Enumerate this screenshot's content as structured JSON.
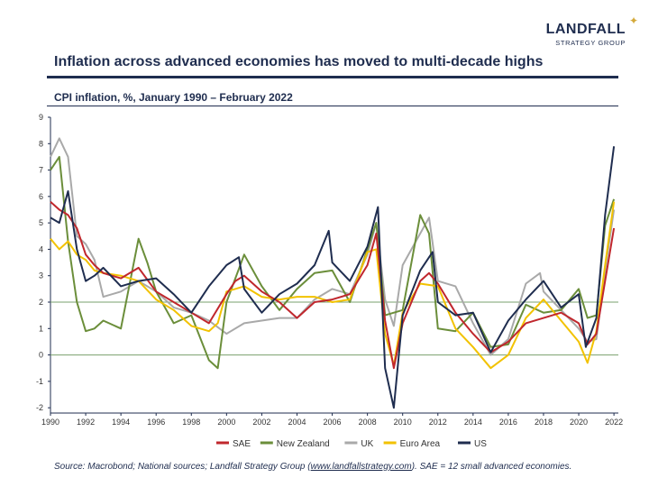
{
  "brand": {
    "name": "LANDFALL",
    "sub": "STRATEGY GROUP"
  },
  "headline": "Inflation across advanced economies has moved to multi-decade highs",
  "colors": {
    "SAE": "#c0272d",
    "New Zealand": "#6b8e3a",
    "UK": "#a9a9a9",
    "Euro Area": "#f2c200",
    "US": "#1f2d4f",
    "ref": "#7aa06d",
    "axis": "#1f2d4f"
  },
  "source": {
    "prefix": "Source: Macrobond; National sources; Landfall Strategy Group (",
    "link": "www.landfallstrategy.com",
    "suffix": "). SAE = 12 small advanced economies."
  },
  "chart_data": {
    "type": "line",
    "title": "CPI inflation, %, January 1990 – February 2022",
    "xlabel": "",
    "ylabel": "",
    "xlim": [
      1990,
      2022.25
    ],
    "ylim": [
      -2.2,
      9
    ],
    "yticks": [
      -2,
      -1,
      0,
      1,
      2,
      3,
      4,
      5,
      6,
      7,
      8,
      9
    ],
    "xticks": [
      1990,
      1992,
      1994,
      1996,
      1998,
      2000,
      2002,
      2004,
      2006,
      2008,
      2010,
      2012,
      2014,
      2016,
      2018,
      2020,
      2022
    ],
    "reference_lines": [
      0,
      2
    ],
    "legend_position": "bottom",
    "series": [
      {
        "name": "SAE",
        "x": [
          1990,
          1990.5,
          1991,
          1991.5,
          1992,
          1992.5,
          1993,
          1994,
          1995,
          1996,
          1997,
          1998,
          1999,
          2000,
          2000.5,
          2001,
          2002,
          2003,
          2004,
          2005,
          2006,
          2007,
          2008,
          2008.5,
          2009,
          2009.5,
          2010,
          2011,
          2011.5,
          2012,
          2013,
          2014,
          2015,
          2016,
          2017,
          2018,
          2019,
          2020,
          2020.5,
          2021,
          2021.5,
          2022
        ],
        "y": [
          5.8,
          5.5,
          5.3,
          4.8,
          3.8,
          3.4,
          3.1,
          2.9,
          3.3,
          2.4,
          2.0,
          1.6,
          1.2,
          2.3,
          2.8,
          3.0,
          2.4,
          2.0,
          1.4,
          2.0,
          2.1,
          2.3,
          3.4,
          4.6,
          1.3,
          -0.5,
          1.2,
          2.8,
          3.1,
          2.7,
          1.6,
          0.8,
          0.1,
          0.5,
          1.2,
          1.4,
          1.6,
          1.2,
          0.4,
          0.8,
          2.8,
          4.8
        ]
      },
      {
        "name": "New Zealand",
        "x": [
          1990,
          1990.5,
          1991,
          1991.5,
          1992,
          1992.5,
          1993,
          1994,
          1995,
          1995.5,
          1996,
          1997,
          1998,
          1999,
          1999.5,
          2000,
          2001,
          2002,
          2003,
          2004,
          2005,
          2006,
          2007,
          2008,
          2008.5,
          2009,
          2010,
          2011,
          2011.5,
          2012,
          2013,
          2014,
          2015,
          2016,
          2017,
          2018,
          2019,
          2020,
          2020.5,
          2021,
          2021.5,
          2022
        ],
        "y": [
          7.0,
          7.5,
          4.3,
          2.0,
          0.9,
          1.0,
          1.3,
          1.0,
          4.4,
          3.5,
          2.4,
          1.2,
          1.5,
          -0.2,
          -0.5,
          2.0,
          3.8,
          2.6,
          1.7,
          2.5,
          3.1,
          3.2,
          2.0,
          4.0,
          5.0,
          1.5,
          1.7,
          5.3,
          4.6,
          1.0,
          0.9,
          1.6,
          0.3,
          0.4,
          1.9,
          1.6,
          1.7,
          2.5,
          1.4,
          1.5,
          4.9,
          5.9
        ]
      },
      {
        "name": "UK",
        "x": [
          1990,
          1990.5,
          1991,
          1991.5,
          1992,
          1992.5,
          1993,
          1994,
          1995,
          1996,
          1997,
          1998,
          1999,
          2000,
          2001,
          2002,
          2003,
          2004,
          2005,
          2006,
          2007,
          2008,
          2008.5,
          2009,
          2009.5,
          2010,
          2011,
          2011.5,
          2012,
          2013,
          2014,
          2015,
          2016,
          2017,
          2017.8,
          2018,
          2019,
          2020,
          2020.5,
          2021,
          2021.5,
          2022
        ],
        "y": [
          7.5,
          8.2,
          7.5,
          4.5,
          4.2,
          3.6,
          2.2,
          2.4,
          2.8,
          2.4,
          1.8,
          1.6,
          1.3,
          0.8,
          1.2,
          1.3,
          1.4,
          1.4,
          2.1,
          2.5,
          2.3,
          3.8,
          5.0,
          2.1,
          1.1,
          3.4,
          4.6,
          5.2,
          2.8,
          2.6,
          1.2,
          0.0,
          0.6,
          2.7,
          3.1,
          2.4,
          1.7,
          1.0,
          0.5,
          0.6,
          3.2,
          5.5
        ]
      },
      {
        "name": "Euro Area",
        "x": [
          1990,
          1990.5,
          1991,
          1991.5,
          1992,
          1992.5,
          1993,
          1994,
          1995,
          1996,
          1997,
          1998,
          1999,
          1999.5,
          2000,
          2001,
          2002,
          2003,
          2004,
          2005,
          2006,
          2007,
          2008,
          2008.5,
          2009,
          2009.5,
          2010,
          2011,
          2012,
          2013,
          2014,
          2015,
          2016,
          2017,
          2018,
          2019,
          2020,
          2020.5,
          2021,
          2021.5,
          2022
        ],
        "y": [
          4.4,
          4.0,
          4.3,
          3.8,
          3.6,
          3.2,
          3.1,
          3.0,
          2.8,
          2.1,
          1.7,
          1.1,
          0.9,
          1.2,
          2.4,
          2.6,
          2.2,
          2.1,
          2.2,
          2.2,
          2.0,
          2.1,
          3.9,
          4.0,
          0.8,
          -0.4,
          1.6,
          2.7,
          2.6,
          1.0,
          0.3,
          -0.5,
          0.0,
          1.4,
          2.1,
          1.3,
          0.5,
          -0.3,
          0.9,
          3.4,
          5.8
        ]
      },
      {
        "name": "US",
        "x": [
          1990,
          1990.5,
          1991,
          1991.5,
          1992,
          1992.5,
          1993,
          1994,
          1995,
          1996,
          1997,
          1998,
          1999,
          2000,
          2000.7,
          2001,
          2002,
          2003,
          2004,
          2005,
          2005.8,
          2006,
          2007,
          2008,
          2008.6,
          2009,
          2009.5,
          2010,
          2011,
          2011.7,
          2012,
          2013,
          2014,
          2015,
          2016,
          2017,
          2018,
          2019,
          2020,
          2020.4,
          2021,
          2021.5,
          2022
        ],
        "y": [
          5.2,
          5.0,
          6.2,
          4.0,
          2.8,
          3.0,
          3.3,
          2.6,
          2.8,
          2.9,
          2.3,
          1.6,
          2.6,
          3.4,
          3.7,
          2.5,
          1.6,
          2.3,
          2.7,
          3.4,
          4.7,
          3.5,
          2.8,
          4.1,
          5.6,
          -0.5,
          -2.0,
          1.5,
          3.2,
          3.9,
          2.0,
          1.5,
          1.6,
          0.1,
          1.3,
          2.1,
          2.8,
          1.8,
          2.3,
          0.3,
          1.4,
          5.3,
          7.9
        ]
      }
    ]
  }
}
